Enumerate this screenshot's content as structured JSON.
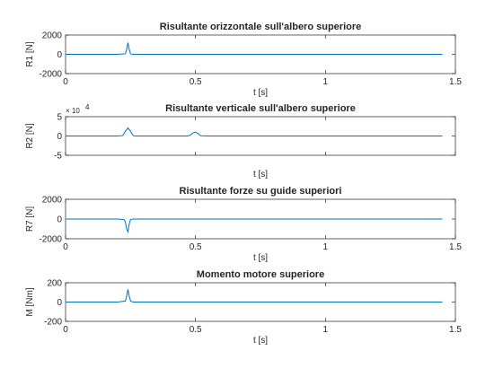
{
  "figure": {
    "background": "#ffffff",
    "axes_color": "#262626",
    "line_color": "#0072bd"
  },
  "chart_data": [
    {
      "type": "line",
      "title": "Risultante orizzontale sull'albero superiore",
      "xlabel": "t [s]",
      "ylabel": "R1 [N]",
      "xlim": [
        0,
        1.5
      ],
      "ylim": [
        -2000,
        2000
      ],
      "xticks": [
        "0",
        "0.5",
        "1",
        "1.5"
      ],
      "yticks": [
        "2000",
        "0",
        "-2000"
      ],
      "ytick_values": [
        2000,
        0,
        -2000
      ],
      "exponent_label": "",
      "scale": 1,
      "grid": false,
      "series": [
        {
          "x": [
            0,
            0.2,
            0.23,
            0.235,
            0.24,
            0.245,
            0.25,
            0.26,
            0.3,
            0.6,
            1.0,
            1.45
          ],
          "y": [
            0,
            0,
            50,
            500,
            1200,
            500,
            50,
            0,
            0,
            0,
            0,
            0
          ]
        }
      ]
    },
    {
      "type": "line",
      "title": "Risultante verticale sull'albero superiore",
      "xlabel": "t [s]",
      "ylabel": "R2 [N]",
      "xlim": [
        0,
        1.5
      ],
      "ylim": [
        -50000,
        50000
      ],
      "xticks": [
        "",
        "",
        "",
        ""
      ],
      "yticks": [
        "5",
        "0",
        "-5"
      ],
      "ytick_values": [
        50000,
        0,
        -50000
      ],
      "exponent_label": "× 10",
      "exponent_power": "4",
      "scale": 10000,
      "grid": false,
      "series": [
        {
          "x": [
            0,
            0.2,
            0.22,
            0.23,
            0.24,
            0.25,
            0.26,
            0.27,
            0.3,
            0.47,
            0.48,
            0.49,
            0.5,
            0.51,
            0.52,
            0.55,
            1.0,
            1.45
          ],
          "y": [
            0,
            0,
            1000,
            12000,
            21000,
            12000,
            1000,
            0,
            0,
            0,
            2000,
            8000,
            10000,
            6000,
            500,
            0,
            0,
            0
          ]
        }
      ]
    },
    {
      "type": "line",
      "title": "Risultante forze su guide superiori",
      "xlabel": "t [s]",
      "ylabel": "R7 [N]",
      "xlim": [
        0,
        1.5
      ],
      "ylim": [
        -2000,
        2000
      ],
      "xticks": [
        "0",
        "0.5",
        "1",
        "1.5"
      ],
      "yticks": [
        "2000",
        "0",
        "-2000"
      ],
      "ytick_values": [
        2000,
        0,
        -2000
      ],
      "exponent_label": "",
      "scale": 1,
      "grid": false,
      "series": [
        {
          "x": [
            0,
            0.2,
            0.225,
            0.23,
            0.235,
            0.24,
            0.245,
            0.25,
            0.26,
            0.3,
            0.5,
            1.0,
            1.45
          ],
          "y": [
            0,
            0,
            -50,
            -300,
            -1000,
            -1300,
            -500,
            -50,
            0,
            0,
            0,
            0,
            0
          ]
        }
      ]
    },
    {
      "type": "line",
      "title": "Momento motore superiore",
      "xlabel": "t [s]",
      "ylabel": "M [Nm]",
      "xlim": [
        0,
        1.5
      ],
      "ylim": [
        -200,
        200
      ],
      "xticks": [
        "0",
        "0.5",
        "1",
        "1.5"
      ],
      "yticks": [
        "200",
        "0",
        "-200"
      ],
      "ytick_values": [
        200,
        0,
        -200
      ],
      "exponent_label": "",
      "scale": 1,
      "grid": false,
      "series": [
        {
          "x": [
            0,
            0.2,
            0.23,
            0.235,
            0.24,
            0.245,
            0.25,
            0.26,
            0.3,
            0.6,
            1.0,
            1.45
          ],
          "y": [
            0,
            0,
            10,
            60,
            130,
            60,
            10,
            0,
            0,
            0,
            0,
            0
          ]
        }
      ]
    }
  ]
}
